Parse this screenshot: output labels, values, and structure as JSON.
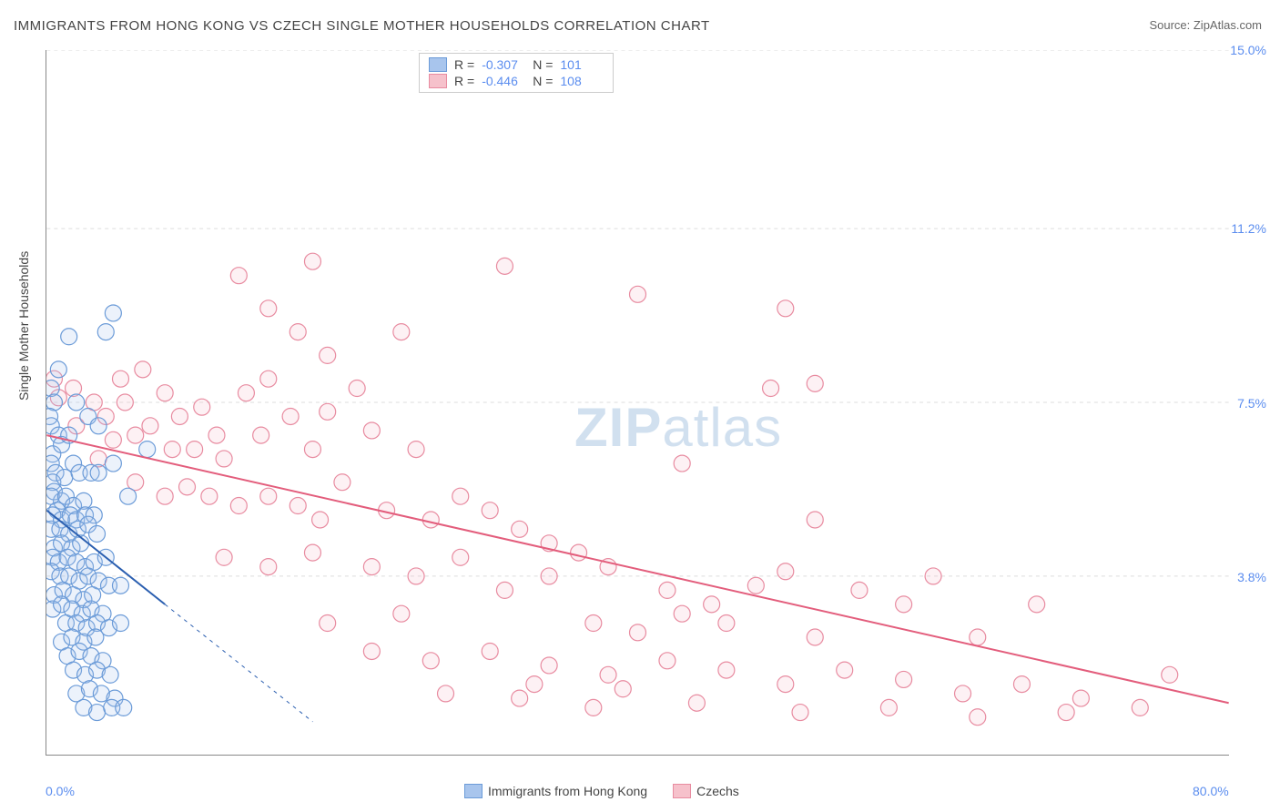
{
  "title": "IMMIGRANTS FROM HONG KONG VS CZECH SINGLE MOTHER HOUSEHOLDS CORRELATION CHART",
  "source": "Source: ZipAtlas.com",
  "y_axis_label": "Single Mother Households",
  "watermark_zip": "ZIP",
  "watermark_atlas": "atlas",
  "chart": {
    "type": "scatter",
    "xlim": [
      0,
      80
    ],
    "ylim": [
      0,
      15
    ],
    "x_ticks": [
      {
        "value": 0,
        "label": "0.0%"
      },
      {
        "value": 80,
        "label": "80.0%"
      }
    ],
    "y_ticks": [
      {
        "value": 3.8,
        "label": "3.8%"
      },
      {
        "value": 7.5,
        "label": "7.5%"
      },
      {
        "value": 11.2,
        "label": "11.2%"
      },
      {
        "value": 15.0,
        "label": "15.0%"
      }
    ],
    "background_color": "#ffffff",
    "grid_color": "#dddddd",
    "grid_dash": "4,4",
    "axis_color": "#888888",
    "tick_label_color": "#5b8def",
    "marker_radius": 9,
    "marker_stroke_width": 1.2,
    "marker_fill_opacity": 0.22
  },
  "series": [
    {
      "name": "Immigrants from Hong Kong",
      "legend_label": "Immigrants from Hong Kong",
      "color_fill": "#a8c5ed",
      "color_stroke": "#6b9bd8",
      "trend_color": "#2b5fb0",
      "trend_width": 2,
      "trend_dash_ext": "4,5",
      "R": "-0.307",
      "N": "101",
      "trend": {
        "x1": 0,
        "y1": 5.2,
        "x2": 8,
        "y2": 3.2,
        "ext_x2": 18,
        "ext_y2": 0.7
      },
      "points": [
        [
          0.3,
          7.8
        ],
        [
          0.5,
          7.5
        ],
        [
          0.2,
          7.2
        ],
        [
          0.3,
          7.0
        ],
        [
          0.8,
          6.8
        ],
        [
          0.4,
          6.4
        ],
        [
          1.0,
          6.6
        ],
        [
          0.3,
          6.2
        ],
        [
          1.5,
          6.8
        ],
        [
          0.6,
          6.0
        ],
        [
          0.4,
          5.8
        ],
        [
          1.2,
          5.9
        ],
        [
          1.8,
          6.2
        ],
        [
          2.2,
          6.0
        ],
        [
          3.0,
          6.0
        ],
        [
          3.5,
          6.0
        ],
        [
          0.5,
          5.6
        ],
        [
          1.0,
          5.4
        ],
        [
          0.3,
          5.5
        ],
        [
          1.3,
          5.5
        ],
        [
          1.8,
          5.3
        ],
        [
          2.5,
          5.4
        ],
        [
          0.7,
          5.2
        ],
        [
          0.4,
          5.1
        ],
        [
          1.0,
          5.0
        ],
        [
          1.6,
          5.1
        ],
        [
          2.0,
          5.0
        ],
        [
          2.6,
          5.1
        ],
        [
          3.2,
          5.1
        ],
        [
          0.3,
          4.8
        ],
        [
          0.9,
          4.8
        ],
        [
          1.5,
          4.7
        ],
        [
          2.1,
          4.8
        ],
        [
          2.8,
          4.9
        ],
        [
          3.4,
          4.7
        ],
        [
          0.5,
          4.4
        ],
        [
          1.0,
          4.5
        ],
        [
          1.7,
          4.4
        ],
        [
          2.3,
          4.5
        ],
        [
          0.4,
          4.2
        ],
        [
          0.8,
          4.1
        ],
        [
          1.4,
          4.2
        ],
        [
          2.0,
          4.1
        ],
        [
          2.6,
          4.0
        ],
        [
          3.2,
          4.1
        ],
        [
          4.0,
          4.2
        ],
        [
          0.3,
          3.9
        ],
        [
          0.9,
          3.8
        ],
        [
          1.5,
          3.8
        ],
        [
          2.2,
          3.7
        ],
        [
          2.8,
          3.8
        ],
        [
          3.5,
          3.7
        ],
        [
          4.2,
          3.6
        ],
        [
          5.0,
          3.6
        ],
        [
          0.5,
          3.4
        ],
        [
          1.1,
          3.5
        ],
        [
          1.8,
          3.4
        ],
        [
          2.5,
          3.3
        ],
        [
          3.1,
          3.4
        ],
        [
          0.4,
          3.1
        ],
        [
          1.0,
          3.2
        ],
        [
          1.7,
          3.1
        ],
        [
          2.4,
          3.0
        ],
        [
          3.0,
          3.1
        ],
        [
          3.8,
          3.0
        ],
        [
          1.3,
          2.8
        ],
        [
          2.0,
          2.8
        ],
        [
          2.7,
          2.7
        ],
        [
          3.4,
          2.8
        ],
        [
          4.2,
          2.7
        ],
        [
          5.0,
          2.8
        ],
        [
          1.0,
          2.4
        ],
        [
          1.7,
          2.5
        ],
        [
          2.5,
          2.4
        ],
        [
          3.3,
          2.5
        ],
        [
          1.4,
          2.1
        ],
        [
          2.2,
          2.2
        ],
        [
          3.0,
          2.1
        ],
        [
          3.8,
          2.0
        ],
        [
          1.8,
          1.8
        ],
        [
          2.6,
          1.7
        ],
        [
          3.4,
          1.8
        ],
        [
          4.3,
          1.7
        ],
        [
          2.0,
          1.3
        ],
        [
          2.9,
          1.4
        ],
        [
          3.7,
          1.3
        ],
        [
          4.6,
          1.2
        ],
        [
          2.5,
          1.0
        ],
        [
          3.4,
          0.9
        ],
        [
          4.4,
          1.0
        ],
        [
          5.2,
          1.0
        ],
        [
          4.5,
          9.4
        ],
        [
          4.0,
          9.0
        ],
        [
          1.5,
          8.9
        ],
        [
          0.8,
          8.2
        ],
        [
          2.0,
          7.5
        ],
        [
          2.8,
          7.2
        ],
        [
          3.5,
          7.0
        ],
        [
          4.5,
          6.2
        ],
        [
          5.5,
          5.5
        ],
        [
          6.8,
          6.5
        ]
      ]
    },
    {
      "name": "Czechs",
      "legend_label": "Czechs",
      "color_fill": "#f6c1cb",
      "color_stroke": "#e88ba0",
      "trend_color": "#e35d7c",
      "trend_width": 2,
      "trend_dash_ext": "none",
      "R": "-0.446",
      "N": "108",
      "trend": {
        "x1": 0,
        "y1": 6.8,
        "x2": 80,
        "y2": 1.1
      },
      "points": [
        [
          0.5,
          8.0
        ],
        [
          1.8,
          7.8
        ],
        [
          3.2,
          7.5
        ],
        [
          2.0,
          7.0
        ],
        [
          4.0,
          7.2
        ],
        [
          0.8,
          7.6
        ],
        [
          5.0,
          8.0
        ],
        [
          6.5,
          8.2
        ],
        [
          8.0,
          7.7
        ],
        [
          7.0,
          7.0
        ],
        [
          9.0,
          7.2
        ],
        [
          5.3,
          7.5
        ],
        [
          10.5,
          7.4
        ],
        [
          11.5,
          6.8
        ],
        [
          4.5,
          6.7
        ],
        [
          6.0,
          6.8
        ],
        [
          8.5,
          6.5
        ],
        [
          3.5,
          6.3
        ],
        [
          10.0,
          6.5
        ],
        [
          12.0,
          6.3
        ],
        [
          13.5,
          7.7
        ],
        [
          14.5,
          6.8
        ],
        [
          15.0,
          8.0
        ],
        [
          16.5,
          7.2
        ],
        [
          6.0,
          5.8
        ],
        [
          8.0,
          5.5
        ],
        [
          9.5,
          5.7
        ],
        [
          11.0,
          5.5
        ],
        [
          13.0,
          5.3
        ],
        [
          15.0,
          5.5
        ],
        [
          17.0,
          5.3
        ],
        [
          18.5,
          5.0
        ],
        [
          20.0,
          5.8
        ],
        [
          22.0,
          6.9
        ],
        [
          18.0,
          6.5
        ],
        [
          19.0,
          7.3
        ],
        [
          21.0,
          7.8
        ],
        [
          25.0,
          6.5
        ],
        [
          23.0,
          5.2
        ],
        [
          26.0,
          5.0
        ],
        [
          28.0,
          5.5
        ],
        [
          30.0,
          5.2
        ],
        [
          17.0,
          9.0
        ],
        [
          19.0,
          8.5
        ],
        [
          15.0,
          9.5
        ],
        [
          13.0,
          10.2
        ],
        [
          18.0,
          10.5
        ],
        [
          24.0,
          9.0
        ],
        [
          31.0,
          10.4
        ],
        [
          32.0,
          4.8
        ],
        [
          34.0,
          4.5
        ],
        [
          36.0,
          4.3
        ],
        [
          12.0,
          4.2
        ],
        [
          15.0,
          4.0
        ],
        [
          18.0,
          4.3
        ],
        [
          22.0,
          4.0
        ],
        [
          25.0,
          3.8
        ],
        [
          28.0,
          4.2
        ],
        [
          31.0,
          3.5
        ],
        [
          34.0,
          3.8
        ],
        [
          38.0,
          4.0
        ],
        [
          40.0,
          9.8
        ],
        [
          42.0,
          3.5
        ],
        [
          45.0,
          3.2
        ],
        [
          48.0,
          3.6
        ],
        [
          37.0,
          2.8
        ],
        [
          40.0,
          2.6
        ],
        [
          43.0,
          3.0
        ],
        [
          46.0,
          2.8
        ],
        [
          50.0,
          3.9
        ],
        [
          52.0,
          2.5
        ],
        [
          55.0,
          3.5
        ],
        [
          58.0,
          3.2
        ],
        [
          49.0,
          7.8
        ],
        [
          52.0,
          7.9
        ],
        [
          50.0,
          9.5
        ],
        [
          22.0,
          2.2
        ],
        [
          26.0,
          2.0
        ],
        [
          30.0,
          2.2
        ],
        [
          34.0,
          1.9
        ],
        [
          38.0,
          1.7
        ],
        [
          42.0,
          2.0
        ],
        [
          46.0,
          1.8
        ],
        [
          50.0,
          1.5
        ],
        [
          54.0,
          1.8
        ],
        [
          58.0,
          1.6
        ],
        [
          62.0,
          1.3
        ],
        [
          66.0,
          1.5
        ],
        [
          70.0,
          1.2
        ],
        [
          27.0,
          1.3
        ],
        [
          32.0,
          1.2
        ],
        [
          37.0,
          1.0
        ],
        [
          44.0,
          1.1
        ],
        [
          51.0,
          0.9
        ],
        [
          57.0,
          1.0
        ],
        [
          63.0,
          0.8
        ],
        [
          69.0,
          0.9
        ],
        [
          74.0,
          1.0
        ],
        [
          76.0,
          1.7
        ],
        [
          67.0,
          3.2
        ],
        [
          63.0,
          2.5
        ],
        [
          43.0,
          6.2
        ],
        [
          52.0,
          5.0
        ],
        [
          60.0,
          3.8
        ],
        [
          39.0,
          1.4
        ],
        [
          33.0,
          1.5
        ],
        [
          19.0,
          2.8
        ],
        [
          24.0,
          3.0
        ]
      ]
    }
  ],
  "stats_box": {
    "R_label": "R =",
    "N_label": "N ="
  },
  "legend": {
    "series1": "Immigrants from Hong Kong",
    "series2": "Czechs"
  }
}
